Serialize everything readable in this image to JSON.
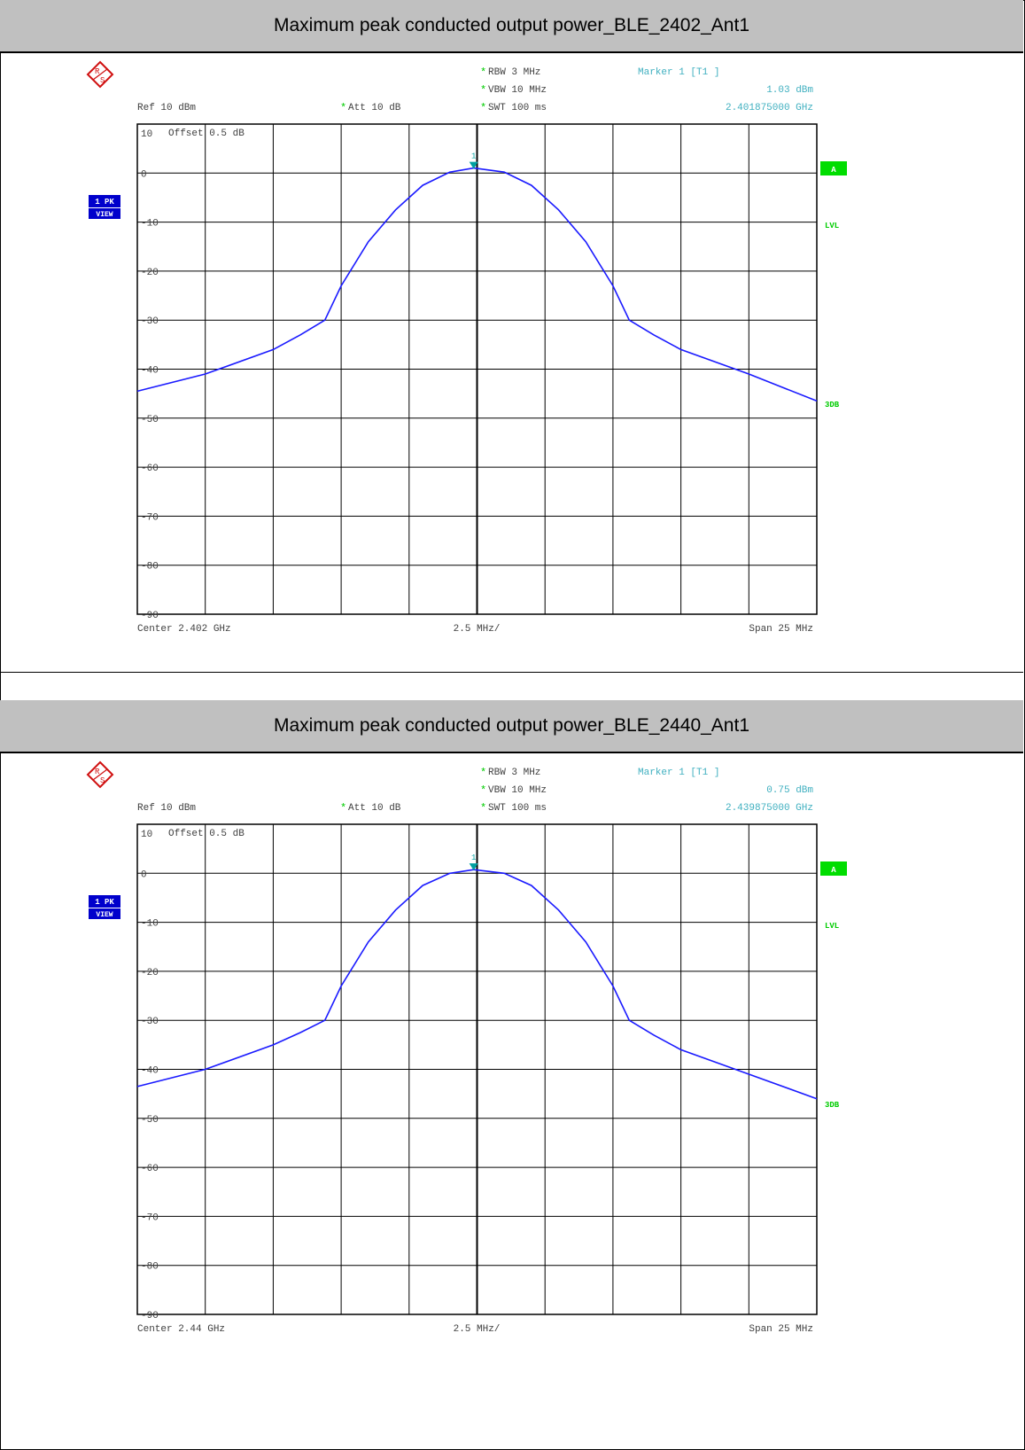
{
  "chart_data": [
    {
      "type": "line",
      "title": "Maximum peak conducted output power_BLE_2402_Ant1",
      "colors": {
        "trace": "#1a1aff",
        "marker": "#00a0a0",
        "info": "#40b0c0",
        "status": "#00cc00",
        "label_bg": "#0000cc"
      },
      "settings": {
        "rbw": "RBW 3 MHz",
        "vbw": "VBW 10 MHz",
        "swt": "SWT 100 ms",
        "ref": "Ref  10 dBm",
        "att": "Att  10 dB",
        "offset": "Offset   0.5 dB"
      },
      "marker": {
        "label": "Marker 1 [T1 ]",
        "level": "1.03 dBm",
        "freq": "2.401875000 GHz",
        "number": "1",
        "x_mhz": -0.125,
        "y_dbm": 1.03
      },
      "side_labels": {
        "trace": "1 PK",
        "view": "VIEW",
        "a": "A",
        "lvl": "LVL",
        "db3": "3DB"
      },
      "footer": {
        "center": "Center  2.402 GHz",
        "div": "2.5 MHz/",
        "span": "Span  25 MHz"
      },
      "y_ticks": [
        "10",
        "0",
        "-10",
        "-20",
        "-30",
        "-40",
        "-50",
        "-60",
        "-70",
        "-80",
        "-90"
      ],
      "xlim": [
        -12.5,
        12.5
      ],
      "ylim": [
        -90,
        10
      ],
      "x": [
        -12.5,
        -10,
        -7.5,
        -6.5,
        -5.6,
        -5,
        -4,
        -3,
        -2,
        -1,
        -0.125,
        1,
        2,
        3,
        4,
        5,
        5.6,
        6.5,
        7.5,
        10,
        12.5
      ],
      "y": [
        -44.5,
        -41,
        -36,
        -33,
        -30,
        -23,
        -14,
        -7.5,
        -2.5,
        0.2,
        1.03,
        0.2,
        -2.5,
        -7.5,
        -14,
        -23,
        -30,
        -33,
        -36,
        -41,
        -46.5
      ]
    },
    {
      "type": "line",
      "title": "Maximum peak conducted output power_BLE_2440_Ant1",
      "colors": {
        "trace": "#1a1aff",
        "marker": "#00a0a0",
        "info": "#40b0c0",
        "status": "#00cc00",
        "label_bg": "#0000cc"
      },
      "settings": {
        "rbw": "RBW 3 MHz",
        "vbw": "VBW 10 MHz",
        "swt": "SWT 100 ms",
        "ref": "Ref  10 dBm",
        "att": "Att  10 dB",
        "offset": "Offset   0.5 dB"
      },
      "marker": {
        "label": "Marker 1 [T1 ]",
        "level": "0.75 dBm",
        "freq": "2.439875000 GHz",
        "number": "1",
        "x_mhz": -0.125,
        "y_dbm": 0.75
      },
      "side_labels": {
        "trace": "1 PK",
        "view": "VIEW",
        "a": "A",
        "lvl": "LVL",
        "db3": "3DB"
      },
      "footer": {
        "center": "Center  2.44 GHz",
        "div": "2.5 MHz/",
        "span": "Span  25 MHz"
      },
      "y_ticks": [
        "10",
        "0",
        "-10",
        "-20",
        "-30",
        "-40",
        "-50",
        "-60",
        "-70",
        "-80",
        "-90"
      ],
      "xlim": [
        -12.5,
        12.5
      ],
      "ylim": [
        -90,
        10
      ],
      "x": [
        -12.5,
        -10,
        -7.5,
        -6.5,
        -5.6,
        -5,
        -4,
        -3,
        -2,
        -1,
        -0.125,
        1,
        2,
        3,
        4,
        5,
        5.6,
        6.5,
        7.5,
        10,
        12.5
      ],
      "y": [
        -43.5,
        -40,
        -35,
        -32.5,
        -30,
        -23,
        -14,
        -7.5,
        -2.5,
        0,
        0.75,
        0,
        -2.5,
        -7.5,
        -14,
        -23,
        -30,
        -33,
        -36,
        -41,
        -46
      ]
    }
  ]
}
